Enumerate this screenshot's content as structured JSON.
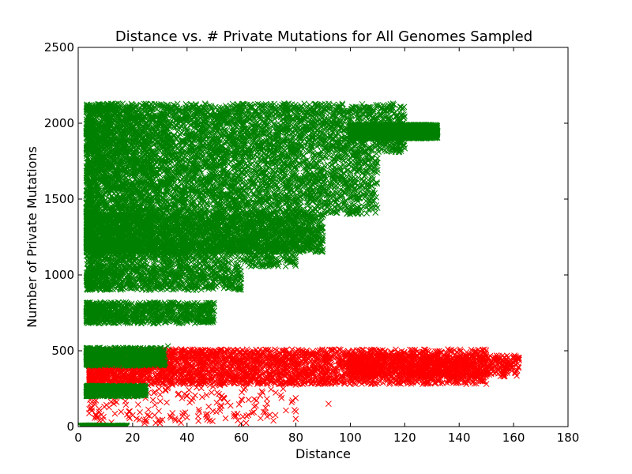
{
  "chart_data": {
    "type": "scatter",
    "title": "Distance vs. # Private Mutations for All Genomes Sampled",
    "xlabel": "Distance",
    "ylabel": "Number of Private Mutations",
    "xlim": [
      0,
      180
    ],
    "ylim": [
      0,
      2500
    ],
    "xticks": [
      "0",
      "20",
      "40",
      "60",
      "80",
      "100",
      "120",
      "140",
      "160",
      "180"
    ],
    "yticks": [
      "0",
      "500",
      "1000",
      "1500",
      "2000",
      "2500"
    ],
    "grid": false,
    "legend": "none",
    "marker": "x",
    "series": [
      {
        "color": "#ff0000",
        "clusters": [
          {
            "x_range": [
              4,
              150
            ],
            "y_range": [
              280,
              510
            ],
            "density": "dense"
          },
          {
            "x_range": [
              100,
              162
            ],
            "y_range": [
              330,
              470
            ],
            "density": "medium"
          },
          {
            "x_range": [
              4,
              80
            ],
            "y_range": [
              20,
              300
            ],
            "density": "sparse"
          }
        ],
        "points": [
          [
            162,
            440
          ],
          [
            160,
            450
          ],
          [
            156,
            430
          ],
          [
            67,
            55
          ],
          [
            80,
            100
          ],
          [
            92,
            150
          ],
          [
            40,
            60
          ],
          [
            30,
            40
          ]
        ]
      },
      {
        "color": "#008000",
        "clusters": [
          {
            "x_range": [
              3,
              120
            ],
            "y_range": [
              1800,
              2130
            ],
            "density": "dense"
          },
          {
            "x_range": [
              100,
              132
            ],
            "y_range": [
              1900,
              1990
            ],
            "density": "dense"
          },
          {
            "x_range": [
              3,
              110
            ],
            "y_range": [
              1400,
              1800
            ],
            "density": "dense"
          },
          {
            "x_range": [
              3,
              90
            ],
            "y_range": [
              1150,
              1400
            ],
            "density": "dense"
          },
          {
            "x_range": [
              3,
              80
            ],
            "y_range": [
              1050,
              1220
            ],
            "density": "medium"
          },
          {
            "x_range": [
              3,
              60
            ],
            "y_range": [
              900,
              1050
            ],
            "density": "medium"
          },
          {
            "x_range": [
              3,
              50
            ],
            "y_range": [
              680,
              820
            ],
            "density": "medium"
          },
          {
            "x_range": [
              3,
              32
            ],
            "y_range": [
              400,
              520
            ],
            "density": "medium"
          },
          {
            "x_range": [
              3,
              25
            ],
            "y_range": [
              200,
              270
            ],
            "density": "medium"
          },
          {
            "x_range": [
              1,
              18
            ],
            "y_range": [
              0,
              8
            ],
            "density": "sparse"
          }
        ],
        "points": [
          [
            132,
            1950
          ],
          [
            113,
            2080
          ],
          [
            86,
            1180
          ],
          [
            58,
            970
          ],
          [
            48,
            720
          ],
          [
            33,
            530
          ]
        ]
      }
    ]
  }
}
